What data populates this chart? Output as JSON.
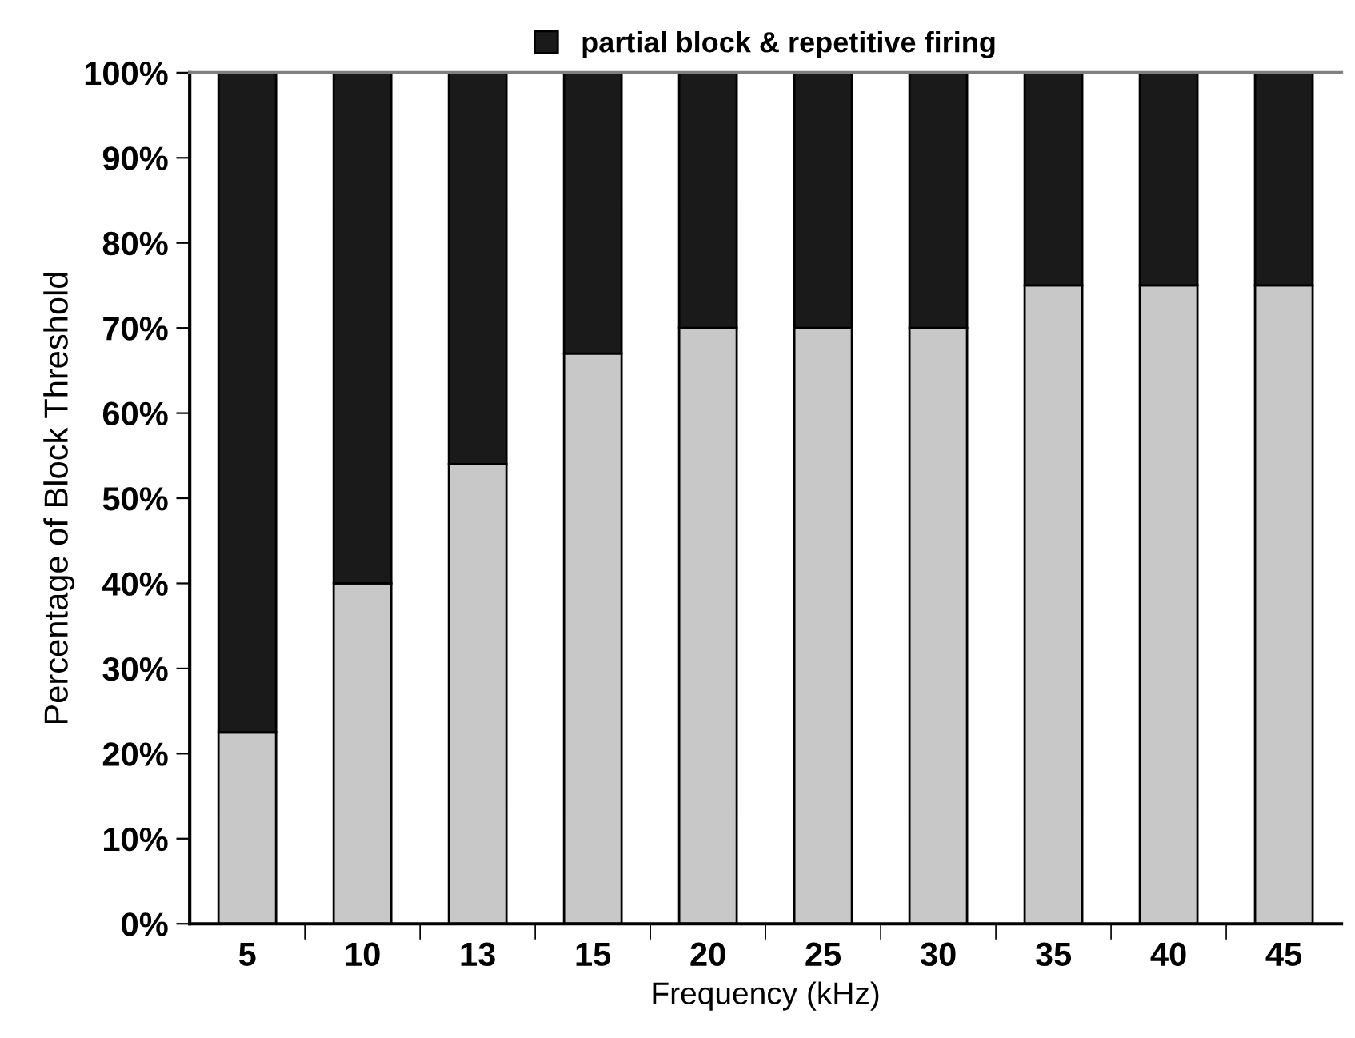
{
  "chart_data": {
    "type": "bar",
    "stacked": true,
    "xlabel": "Frequency (kHz)",
    "ylabel": "Percentage of Block Threshold",
    "categories": [
      "5",
      "10",
      "13",
      "15",
      "20",
      "25",
      "30",
      "35",
      "40",
      "45"
    ],
    "series": [
      {
        "color": "#c8c8c8",
        "values": [
          22.5,
          40,
          54,
          67,
          70,
          70,
          70,
          75,
          75,
          75
        ]
      },
      {
        "name": "partial block & repetitive firing",
        "color": "#1a1a1a",
        "values": [
          77.5,
          60,
          46,
          33,
          30,
          30,
          30,
          25,
          25,
          25
        ]
      }
    ],
    "ylim": [
      0,
      100
    ],
    "yticks": [
      {
        "value": 0,
        "label": "0%"
      },
      {
        "value": 10,
        "label": "10%"
      },
      {
        "value": 20,
        "label": "20%"
      },
      {
        "value": 30,
        "label": "30%"
      },
      {
        "value": 40,
        "label": "40%"
      },
      {
        "value": 50,
        "label": "50%"
      },
      {
        "value": 60,
        "label": "60%"
      },
      {
        "value": 70,
        "label": "70%"
      },
      {
        "value": 80,
        "label": "80%"
      },
      {
        "value": 90,
        "label": "90%"
      },
      {
        "value": 100,
        "label": "100%"
      }
    ],
    "grid": false,
    "legend": "top"
  }
}
